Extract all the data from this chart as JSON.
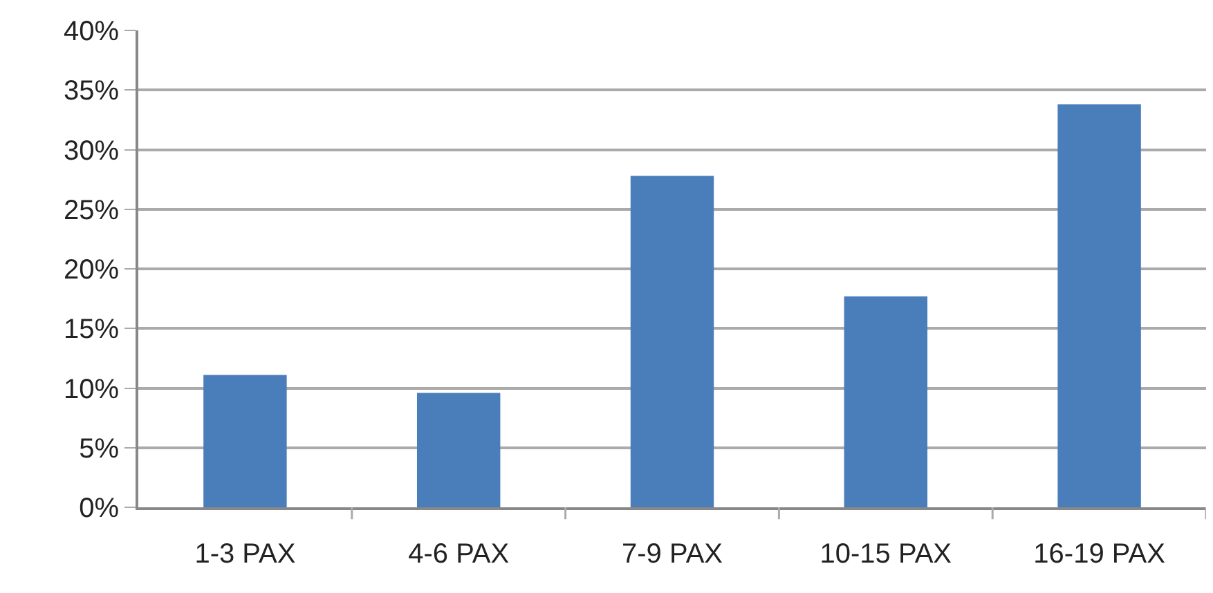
{
  "chart_data": {
    "type": "bar",
    "categories": [
      "1-3 PAX",
      "4-6 PAX",
      "7-9 PAX",
      "10-15 PAX",
      "16-19 PAX"
    ],
    "values": [
      11.1,
      9.6,
      27.8,
      17.7,
      33.8
    ],
    "color": "#4a7ebb",
    "ylim": [
      0,
      40
    ],
    "yticks": [
      {
        "value": 0,
        "label": "0%"
      },
      {
        "value": 5,
        "label": "5%"
      },
      {
        "value": 10,
        "label": "10%"
      },
      {
        "value": 15,
        "label": "15%"
      },
      {
        "value": 20,
        "label": "20%"
      },
      {
        "value": 25,
        "label": "25%"
      },
      {
        "value": 30,
        "label": "30%"
      },
      {
        "value": 35,
        "label": "35%"
      },
      {
        "value": 40,
        "label": "40%"
      }
    ],
    "grid": "y"
  }
}
